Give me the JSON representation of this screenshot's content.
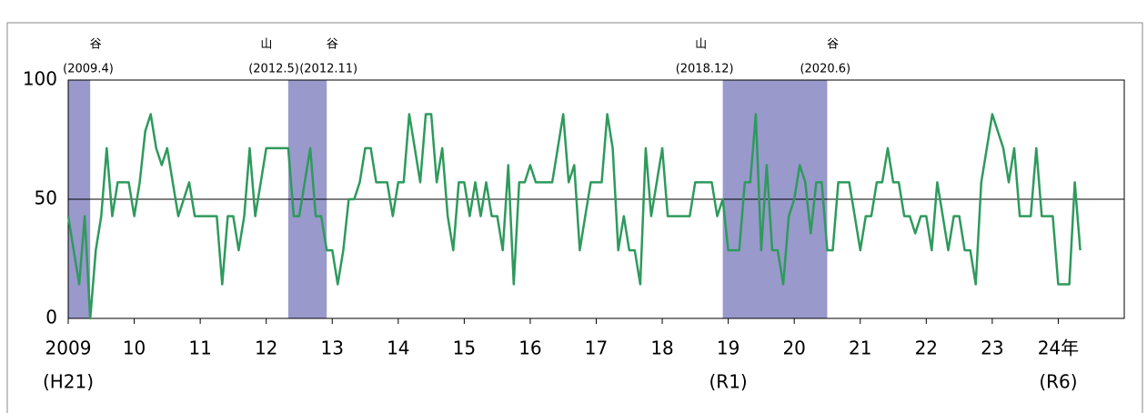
{
  "chart_data": {
    "type": "line",
    "x": [
      2009,
      2009.083,
      2009.167,
      2009.25,
      2009.333,
      2009.417,
      2009.5,
      2009.583,
      2009.667,
      2009.75,
      2009.833,
      2009.917,
      2010,
      2010.083,
      2010.167,
      2010.25,
      2010.333,
      2010.417,
      2010.5,
      2010.583,
      2010.667,
      2010.75,
      2010.833,
      2010.917,
      2011,
      2011.083,
      2011.167,
      2011.25,
      2011.333,
      2011.417,
      2011.5,
      2011.583,
      2011.667,
      2011.75,
      2011.833,
      2011.917,
      2012,
      2012.083,
      2012.167,
      2012.25,
      2012.333,
      2012.417,
      2012.5,
      2012.583,
      2012.667,
      2012.75,
      2012.833,
      2012.917,
      2013,
      2013.083,
      2013.167,
      2013.25,
      2013.333,
      2013.417,
      2013.5,
      2013.583,
      2013.667,
      2013.75,
      2013.833,
      2013.917,
      2014,
      2014.083,
      2014.167,
      2014.25,
      2014.333,
      2014.417,
      2014.5,
      2014.583,
      2014.667,
      2014.75,
      2014.833,
      2014.917,
      2015,
      2015.083,
      2015.167,
      2015.25,
      2015.333,
      2015.417,
      2015.5,
      2015.583,
      2015.667,
      2015.75,
      2015.833,
      2015.917,
      2016,
      2016.083,
      2016.167,
      2016.25,
      2016.333,
      2016.417,
      2016.5,
      2016.583,
      2016.667,
      2016.75,
      2016.833,
      2016.917,
      2017,
      2017.083,
      2017.167,
      2017.25,
      2017.333,
      2017.417,
      2017.5,
      2017.583,
      2017.667,
      2017.75,
      2017.833,
      2017.917,
      2018,
      2018.083,
      2018.167,
      2018.25,
      2018.333,
      2018.417,
      2018.5,
      2018.583,
      2018.667,
      2018.75,
      2018.833,
      2018.917,
      2019,
      2019.083,
      2019.167,
      2019.25,
      2019.333,
      2019.417,
      2019.5,
      2019.583,
      2019.667,
      2019.75,
      2019.833,
      2019.917,
      2020,
      2020.083,
      2020.167,
      2020.25,
      2020.333,
      2020.417,
      2020.5,
      2020.583,
      2020.667,
      2020.75,
      2020.833,
      2020.917,
      2021,
      2021.083,
      2021.167,
      2021.25,
      2021.333,
      2021.417,
      2021.5,
      2021.583,
      2021.667,
      2021.75,
      2021.833,
      2021.917,
      2022,
      2022.083,
      2022.167,
      2022.25,
      2022.333,
      2022.417,
      2022.5,
      2022.583,
      2022.667,
      2022.75,
      2022.833,
      2022.917,
      2023,
      2023.083,
      2023.167,
      2023.25,
      2023.333,
      2023.417,
      2023.5,
      2023.583,
      2023.667,
      2023.75,
      2023.833,
      2023.917,
      2024,
      2024.083,
      2024.167,
      2024.25,
      2024.333
    ],
    "values": [
      42.9,
      28.6,
      14.3,
      42.9,
      0,
      28.6,
      42.9,
      71.4,
      42.9,
      57.1,
      57.1,
      57.1,
      42.9,
      57.1,
      78.6,
      85.7,
      71.4,
      64.3,
      71.4,
      57.1,
      42.9,
      50,
      57.1,
      42.9,
      42.9,
      42.9,
      42.9,
      42.9,
      14.3,
      42.9,
      42.9,
      28.6,
      42.9,
      71.4,
      42.9,
      57.1,
      71.4,
      71.4,
      71.4,
      71.4,
      71.4,
      42.9,
      42.9,
      57.1,
      71.4,
      42.9,
      42.9,
      28.6,
      28.6,
      14.3,
      28.6,
      50,
      50,
      57.1,
      71.4,
      71.4,
      57.1,
      57.1,
      57.1,
      42.9,
      57.1,
      57.1,
      85.7,
      71.4,
      57.1,
      85.7,
      85.7,
      57.1,
      71.4,
      42.9,
      28.6,
      57.1,
      57.1,
      42.9,
      57.1,
      42.9,
      57.1,
      42.9,
      42.9,
      28.6,
      64.3,
      14.3,
      57.1,
      57.1,
      64.3,
      57.1,
      57.1,
      57.1,
      57.1,
      71.4,
      85.7,
      57.1,
      64.3,
      28.6,
      42.9,
      57.1,
      57.1,
      57.1,
      85.7,
      71.4,
      28.6,
      42.9,
      28.6,
      28.6,
      14.3,
      71.4,
      42.9,
      57.1,
      71.4,
      42.9,
      42.9,
      42.9,
      42.9,
      42.9,
      57.1,
      57.1,
      57.1,
      57.1,
      42.9,
      50,
      28.6,
      28.6,
      28.6,
      57.1,
      57.1,
      85.7,
      28.6,
      64.3,
      28.6,
      28.6,
      14.3,
      42.9,
      50,
      64.3,
      57.1,
      35.7,
      57.1,
      57.1,
      28.6,
      28.6,
      57.1,
      57.1,
      57.1,
      42.9,
      28.6,
      42.9,
      42.9,
      57.1,
      57.1,
      71.4,
      57.1,
      57.1,
      42.9,
      42.9,
      35.7,
      42.9,
      42.9,
      28.6,
      57.1,
      42.9,
      28.6,
      42.9,
      42.9,
      28.6,
      28.6,
      14.3,
      57.1,
      71.4,
      85.7,
      78.6,
      71.4,
      57.1,
      71.4,
      42.9,
      42.9,
      42.9,
      71.4,
      42.9,
      42.9,
      42.9,
      14.3,
      14.3,
      14.3,
      57.1,
      28.6
    ],
    "color": "#2e9a5c",
    "xlim": [
      2009,
      2025
    ],
    "xticks": [
      {
        "value": 2009,
        "label": "2009"
      },
      {
        "value": 2010,
        "label": "10"
      },
      {
        "value": 2011,
        "label": "11"
      },
      {
        "value": 2012,
        "label": "12"
      },
      {
        "value": 2013,
        "label": "13"
      },
      {
        "value": 2014,
        "label": "14"
      },
      {
        "value": 2015,
        "label": "15"
      },
      {
        "value": 2016,
        "label": "16"
      },
      {
        "value": 2017,
        "label": "17"
      },
      {
        "value": 2018,
        "label": "18"
      },
      {
        "value": 2019,
        "label": "19"
      },
      {
        "value": 2020,
        "label": "20"
      },
      {
        "value": 2021,
        "label": "21"
      },
      {
        "value": 2022,
        "label": "22"
      },
      {
        "value": 2023,
        "label": "23"
      },
      {
        "value": 2024,
        "label": "24年"
      }
    ],
    "era_labels": [
      {
        "value": 2009,
        "label": "(H21)"
      },
      {
        "value": 2019,
        "label": "(R1)"
      },
      {
        "value": 2024,
        "label": "(R6)"
      }
    ],
    "ylim": [
      0,
      100
    ],
    "yticks": [
      0,
      50,
      100
    ],
    "shade_color": "#9999cc",
    "shaded": [
      {
        "start": 2009,
        "end": 2009.333,
        "trough": {
          "mark": "谷",
          "date": "(2009.4)"
        }
      },
      {
        "start": 2012.333,
        "end": 2012.917,
        "peak": {
          "mark": "山",
          "date": "(2012.5)"
        },
        "trough": {
          "mark": "谷",
          "date": "(2012.11)"
        }
      },
      {
        "start": 2018.917,
        "end": 2020.5,
        "peak": {
          "mark": "山",
          "date": "(2018.12)"
        },
        "trough": {
          "mark": "谷",
          "date": "(2020.6)"
        }
      }
    ]
  }
}
